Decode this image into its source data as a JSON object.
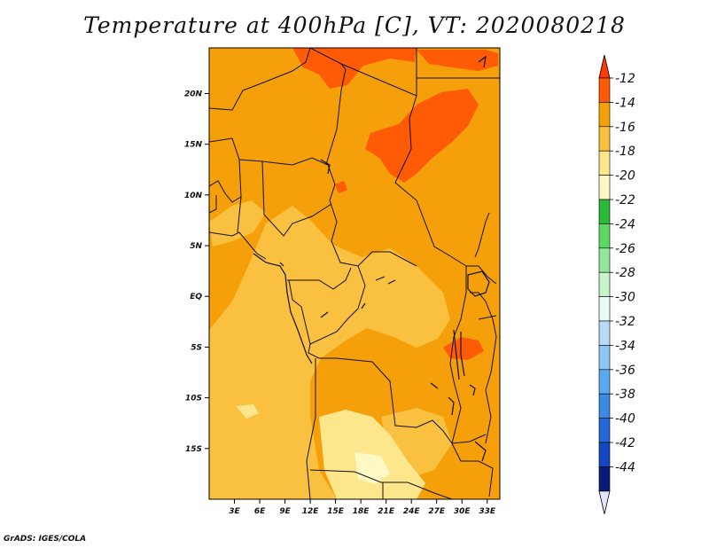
{
  "title": "Temperature at 400hPa [C], VT: 2020080218",
  "credit": "GrADS: IGES/COLA",
  "map": {
    "lon_range": [
      0,
      34.5
    ],
    "lat_range": [
      -20,
      24.5
    ],
    "x_ticks": [
      "3E",
      "6E",
      "9E",
      "12E",
      "15E",
      "18E",
      "21E",
      "24E",
      "27E",
      "30E",
      "33E"
    ],
    "x_tick_values": [
      3,
      6,
      9,
      12,
      15,
      18,
      21,
      24,
      27,
      30,
      33
    ],
    "y_ticks": [
      "20N",
      "15N",
      "10N",
      "5N",
      "EQ",
      "5S",
      "10S",
      "15S"
    ],
    "y_tick_values": [
      20,
      15,
      10,
      5,
      0,
      -5,
      -10,
      -15
    ],
    "base_color": "#f5a00a"
  },
  "colorbar": {
    "labels": [
      "-12",
      "-14",
      "-16",
      "-18",
      "-20",
      "-22",
      "-24",
      "-26",
      "-28",
      "-30",
      "-32",
      "-34",
      "-36",
      "-38",
      "-40",
      "-42",
      "-44"
    ],
    "colors": [
      "#ff5a05",
      "#f5a00a",
      "#fac040",
      "#fde68c",
      "#fef9c4",
      "#2cb838",
      "#5cd960",
      "#92e89a",
      "#c6f5c9",
      "#e8fcf8",
      "#b8dcf8",
      "#90c6f4",
      "#5aa8ee",
      "#3a8ae6",
      "#2468d8",
      "#1448c0",
      "#0a1a78"
    ],
    "top_arrow_color": "#ff3a05",
    "bottom_arrow_color": "#e2e4f8"
  }
}
